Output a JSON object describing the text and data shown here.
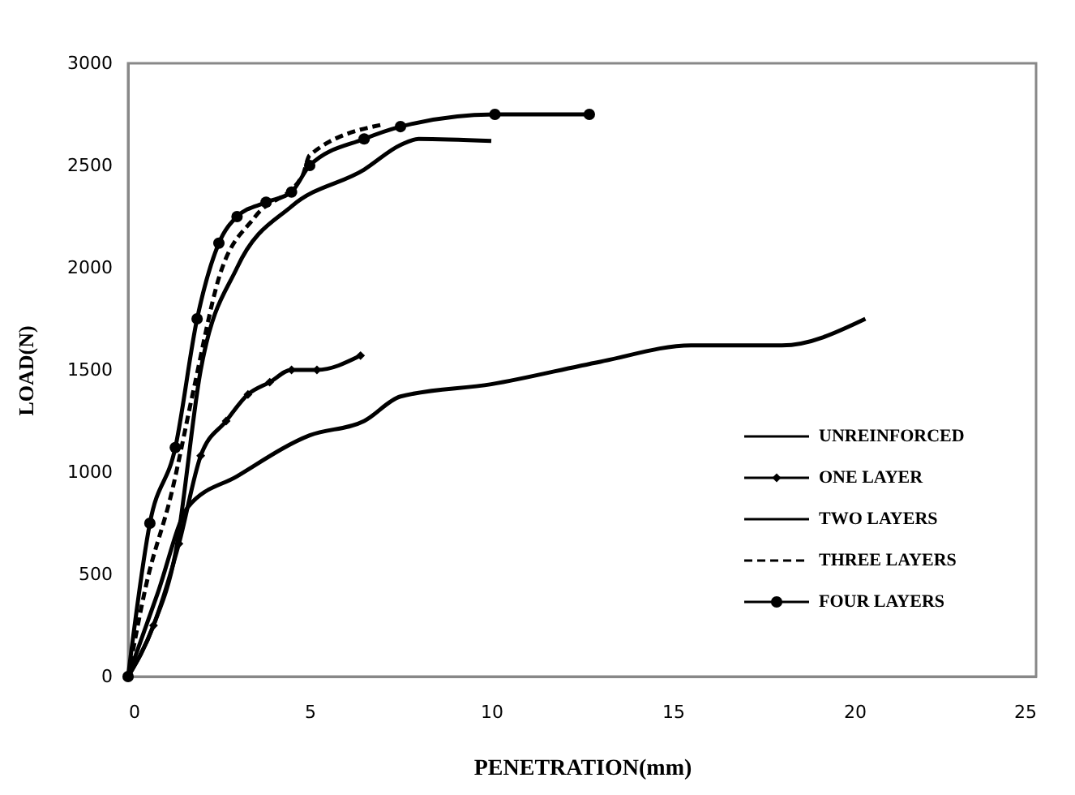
{
  "chart_data": {
    "type": "line",
    "xlabel": "PENETRATION(mm)",
    "ylabel": "LOAD(N)",
    "xlim": [
      0,
      25
    ],
    "xticks": [
      0,
      5,
      10,
      15,
      20,
      25
    ],
    "ylim": [
      0,
      3000
    ],
    "yticks": [
      0,
      500,
      1000,
      1500,
      2000,
      2500,
      3000
    ],
    "grid": false,
    "legend": "right",
    "series": [
      {
        "name": "UNREINFORCED",
        "color": "#000000",
        "marker": "none",
        "line_style": "solid",
        "x": [
          0,
          0.8,
          1.65,
          3,
          5,
          6.5,
          7.5,
          10,
          13,
          15.5,
          18,
          20.3
        ],
        "values": [
          0,
          400,
          830,
          980,
          1180,
          1250,
          1370,
          1430,
          1540,
          1620,
          1620,
          1750
        ]
      },
      {
        "name": "ONE LAYER",
        "color": "#000000",
        "marker": "diamond",
        "line_style": "solid",
        "x": [
          0,
          0.7,
          1.4,
          2,
          2.7,
          3.3,
          3.9,
          4.5,
          5.2,
          6.4
        ],
        "values": [
          0,
          250,
          650,
          1080,
          1250,
          1380,
          1440,
          1500,
          1500,
          1570
        ]
      },
      {
        "name": "TWO LAYERS",
        "color": "#000000",
        "marker": "none",
        "line_style": "solid",
        "x": [
          0,
          0.7,
          1.3,
          2,
          3,
          4.5,
          6.5,
          7.5,
          8,
          10
        ],
        "values": [
          0,
          250,
          600,
          1500,
          2000,
          2300,
          2480,
          2600,
          2630,
          2620
        ]
      },
      {
        "name": "THREE LAYERS",
        "color": "#000000",
        "marker": "none",
        "line_style": "dashed",
        "x": [
          0,
          0.5,
          1.2,
          1.8,
          2.5,
          3.5,
          4.8,
          5,
          7
        ],
        "values": [
          0,
          450,
          900,
          1400,
          1950,
          2250,
          2450,
          2550,
          2700
        ]
      },
      {
        "name": "FOUR LAYERS",
        "color": "#000000",
        "marker": "circle",
        "line_style": "solid",
        "x": [
          0,
          0.6,
          1.3,
          1.9,
          2.5,
          3,
          3.8,
          4.5,
          5,
          6.5,
          7.5,
          10.1,
          12.7
        ],
        "values": [
          0,
          750,
          1120,
          1750,
          2120,
          2250,
          2320,
          2370,
          2500,
          2630,
          2690,
          2750,
          2750
        ]
      }
    ]
  }
}
